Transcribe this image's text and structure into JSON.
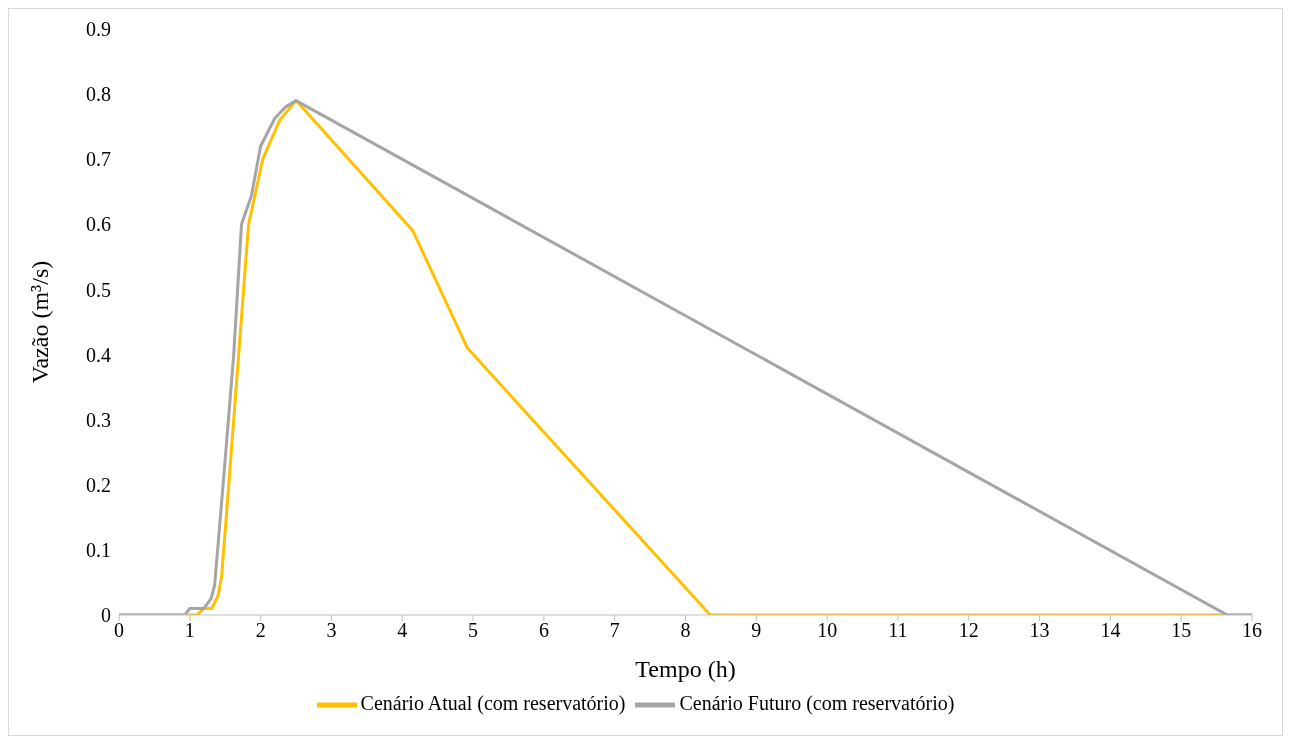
{
  "chart_data": {
    "type": "line",
    "xlabel": "Tempo (h)",
    "ylabel": "Vazão (m³/s)",
    "xlim": [
      0,
      16
    ],
    "xticks": [
      0,
      1,
      2,
      3,
      4,
      5,
      6,
      7,
      8,
      9,
      10,
      11,
      12,
      13,
      14,
      15,
      16
    ],
    "ylim": [
      0,
      0.9
    ],
    "yticks": [
      0,
      0.1,
      0.2,
      0.3,
      0.4,
      0.5,
      0.6,
      0.7,
      0.8,
      0.9
    ],
    "grid": false,
    "legend": "bottom",
    "marker": "none",
    "line_style": "solid",
    "series": [
      {
        "name": "Cenário Atual (com reservatório)",
        "color": "#ffc000",
        "x": [
          0,
          1.1,
          1.2,
          1.31,
          1.4,
          1.45,
          1.55,
          1.69,
          1.83,
          2.03,
          2.27,
          2.5,
          4.15,
          4.92,
          8.35,
          16
        ],
        "values": [
          0,
          0,
          0.01,
          0.01,
          0.03,
          0.06,
          0.2,
          0.4,
          0.6,
          0.7,
          0.76,
          0.79,
          0.59,
          0.41,
          0,
          0
        ]
      },
      {
        "name": "Cenário Futuro (com reservatório)",
        "color": "#a5a5a5",
        "x": [
          0,
          0.93,
          1.0,
          1.2,
          1.3,
          1.35,
          1.47,
          1.62,
          1.73,
          1.87,
          2.0,
          2.2,
          2.35,
          2.5,
          15.65,
          16
        ],
        "values": [
          0,
          0,
          0.01,
          0.01,
          0.025,
          0.045,
          0.2,
          0.4,
          0.6,
          0.644,
          0.72,
          0.763,
          0.78,
          0.79,
          0,
          0
        ]
      }
    ]
  }
}
